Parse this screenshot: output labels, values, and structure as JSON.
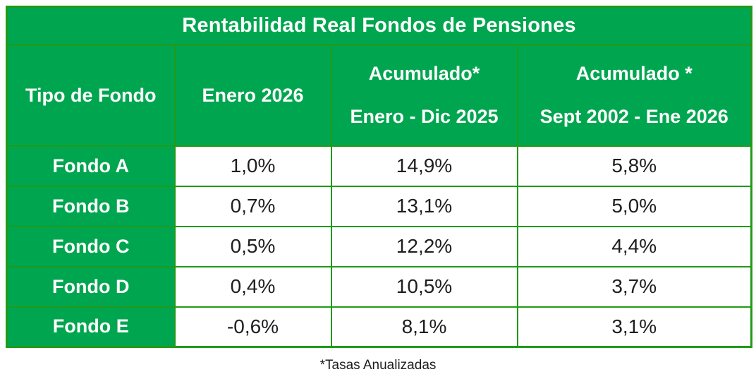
{
  "title": "Rentabilidad Real Fondos de Pensiones",
  "table": {
    "headers": {
      "fund_type": {
        "label": "Tipo de Fondo"
      },
      "enero_2026": {
        "label": "Enero 2026"
      },
      "acumulado_2025": {
        "line1": "Acumulado*",
        "line2": "Enero - Dic 2025"
      },
      "acumulado_2002_2026": {
        "line1": "Acumulado *",
        "line2": "Sept 2002 - Ene 2026"
      }
    },
    "rows": [
      {
        "fund": "Fondo A",
        "values": [
          "1,0%",
          "14,9%",
          "5,8%"
        ]
      },
      {
        "fund": "Fondo B",
        "values": [
          "0,7%",
          "13,1%",
          "5,0%"
        ]
      },
      {
        "fund": "Fondo C",
        "values": [
          "0,5%",
          "12,2%",
          "4,4%"
        ]
      },
      {
        "fund": "Fondo D",
        "values": [
          "0,4%",
          "10,5%",
          "3,7%"
        ]
      },
      {
        "fund": "Fondo E",
        "values": [
          "-0,6%",
          "8,1%",
          "3,1%"
        ]
      }
    ]
  },
  "footnote": "*Tasas Anualizadas",
  "colors": {
    "green_fill": "#00a64f",
    "grid_green": "#219a18",
    "text_dark": "#1e1e1e",
    "background": "#ffffff"
  }
}
